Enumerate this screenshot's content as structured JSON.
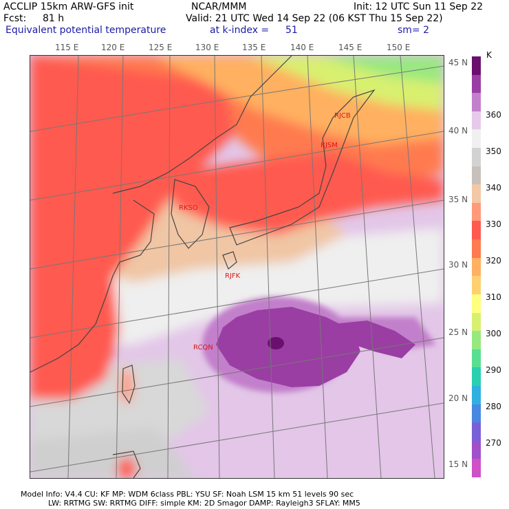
{
  "header": {
    "model": "ACCLIP 15km ARW-GFS init",
    "org": "NCAR/MMM",
    "init": "Init: 12 UTC Sun 11 Sep 22",
    "fcst_label": "Fcst:",
    "fcst_value": "81 h",
    "valid": "Valid: 21 UTC Wed 14 Sep 22 (06 KST Thu 15 Sep 22)",
    "field": "Equivalent potential temperature",
    "level": "at k-index =",
    "level_value": "51",
    "smooth": "sm= 2"
  },
  "lon_ticks": [
    "115 E",
    "120 E",
    "125 E",
    "130 E",
    "135 E",
    "140 E",
    "145 E",
    "150 E"
  ],
  "lat_ticks": [
    "45 N",
    "40 N",
    "35 N",
    "30 N",
    "25 N",
    "20 N",
    "15 N"
  ],
  "stations": [
    {
      "id": "RJCB",
      "name": "RJCB"
    },
    {
      "id": "RJSM",
      "name": "RJSM"
    },
    {
      "id": "RKSO",
      "name": "RKSO"
    },
    {
      "id": "RJFK",
      "name": "RJFK"
    },
    {
      "id": "RCQN",
      "name": "RCQN"
    }
  ],
  "colorbar": {
    "unit": "K",
    "labels": [
      "360",
      "350",
      "340",
      "330",
      "320",
      "310",
      "300",
      "290",
      "280",
      "270"
    ],
    "colors": [
      "#6b0f6f",
      "#9a3ea3",
      "#c27fcb",
      "#e7c9eb",
      "#f0f0f0",
      "#d2d2d2",
      "#c8c0ba",
      "#f2c8a6",
      "#ff9a7a",
      "#ff5a50",
      "#ff7a50",
      "#ffb060",
      "#ffd070",
      "#ffff80",
      "#d8f070",
      "#98e880",
      "#58e090",
      "#28d0b0",
      "#30b0e0",
      "#4888e0",
      "#7a60d8",
      "#a050c8",
      "#d050c8"
    ]
  },
  "footer": {
    "line1": "Model Info: V4.4      CU: KF       MP: WDM 6class   PBL: YSU         SF: Noah LSM      15 km    51 levels    90 sec",
    "line2": "LW: RRTMG     SW: RRTMG    DIFF: simple KM: 2D Smagor DAMP: Rayleigh3   SFLAY: MM5"
  }
}
